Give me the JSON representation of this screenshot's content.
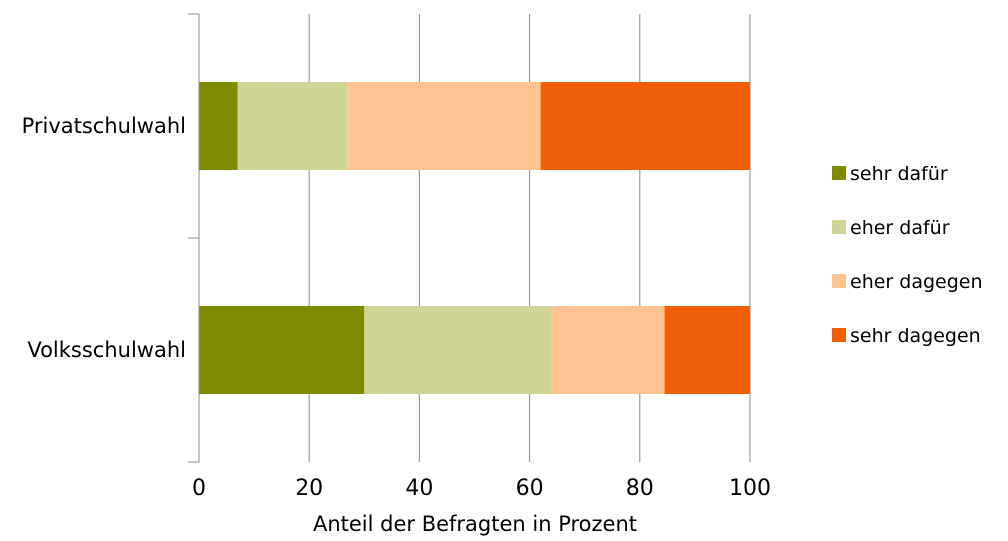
{
  "chart_data": {
    "type": "bar",
    "orientation": "horizontal",
    "stacked": true,
    "categories": [
      "Privatschulwahl",
      "Volksschulwahl"
    ],
    "series": [
      {
        "name": "sehr dafür",
        "color": "#7f8c00",
        "values": [
          7,
          30
        ]
      },
      {
        "name": "eher dafür",
        "color": "#d0d494",
        "values": [
          20,
          34
        ]
      },
      {
        "name": "eher dagegen",
        "color": "#ffc491",
        "values": [
          35,
          20.5
        ]
      },
      {
        "name": "sehr dagegen",
        "color": "#ee5f07",
        "values": [
          38,
          15.5
        ]
      }
    ],
    "xlabel": "Anteil der Befragten in Prozent",
    "ylabel": "",
    "xlim": [
      0,
      100
    ],
    "xticks": [
      0,
      20,
      40,
      60,
      80,
      100
    ],
    "grid": "vertical",
    "legend_position": "right"
  }
}
